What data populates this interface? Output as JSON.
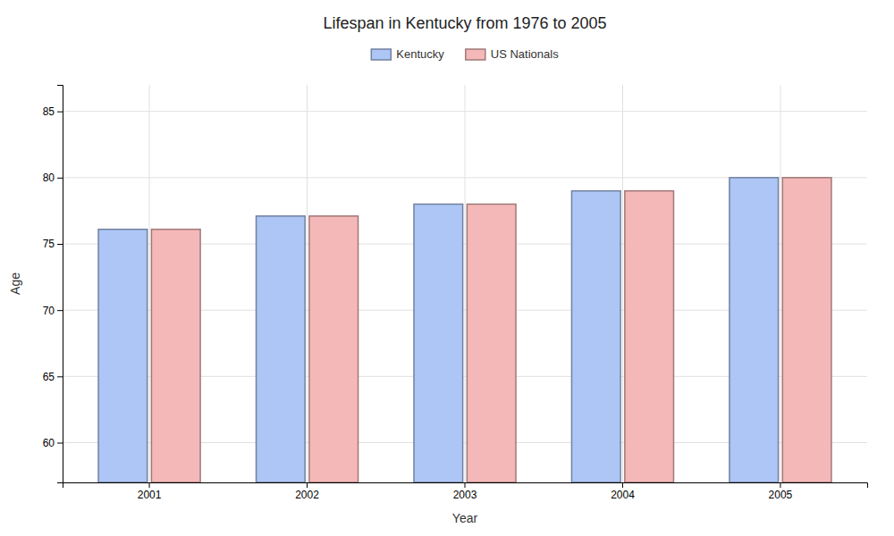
{
  "chart_data": {
    "type": "bar",
    "title": "Lifespan in Kentucky from 1976 to 2005",
    "xlabel": "Year",
    "ylabel": "Age",
    "categories": [
      "2001",
      "2002",
      "2003",
      "2004",
      "2005"
    ],
    "series": [
      {
        "name": "Kentucky",
        "color": "#adc6f5",
        "values": [
          76.1,
          77.1,
          78.0,
          79.0,
          80.0
        ]
      },
      {
        "name": "US Nationals",
        "color": "#f5b8b8",
        "values": [
          76.1,
          77.1,
          78.0,
          79.0,
          80.0
        ]
      }
    ],
    "ylim": [
      57,
      87
    ],
    "yticks": [
      60,
      65,
      70,
      75,
      80,
      85
    ],
    "grid": true,
    "legend": "top"
  }
}
